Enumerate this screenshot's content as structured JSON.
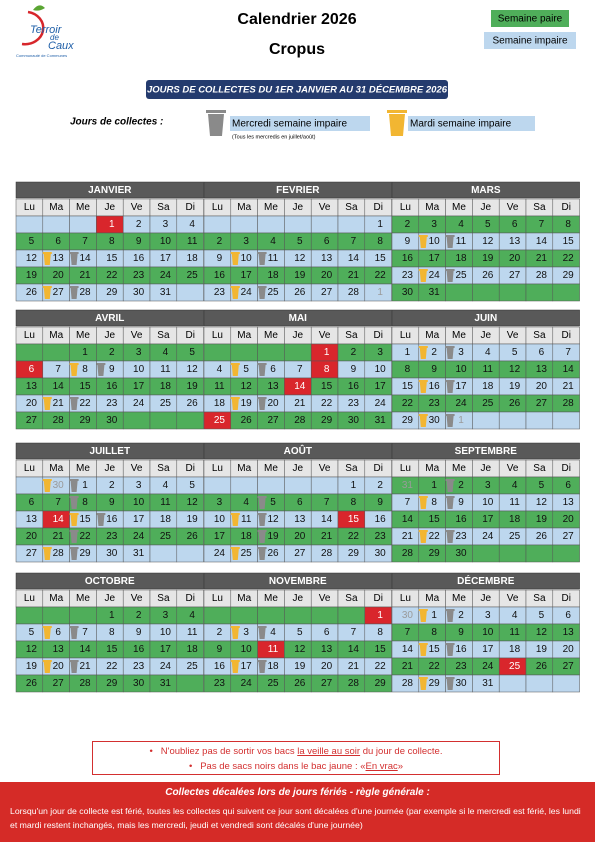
{
  "header": {
    "title": "Calendrier 2026",
    "subtitle": "Cropus",
    "logo": {
      "line1": "Terroir",
      "line2": "de",
      "line3": "Caux",
      "tagline": "Communauté de Communes"
    },
    "legend": {
      "even": "Semaine paire",
      "odd": "Semaine impaire"
    }
  },
  "banner": "JOURS DE COLLECTES DU 1ER JANVIER AU 31 DÉCEMBRE 2026",
  "collection_days": {
    "label": "Jours de collectes :",
    "gray": {
      "text": "Mercredi semaine impaire",
      "note": "(Tous les mercredis en juillet/août)"
    },
    "yellow": {
      "text": "Mardi semaine impaire"
    }
  },
  "weekdays": [
    "Lu",
    "Ma",
    "Me",
    "Je",
    "Ve",
    "Sa",
    "Di"
  ],
  "months": [
    {
      "name": "JANVIER",
      "holidays": [
        1
      ],
      "weeks": [
        {
          "parity": "odd",
          "days": [
            null,
            null,
            null,
            1,
            2,
            3,
            4
          ]
        },
        {
          "parity": "even",
          "days": [
            5,
            6,
            7,
            8,
            9,
            10,
            11
          ]
        },
        {
          "parity": "odd",
          "days": [
            12,
            13,
            14,
            15,
            16,
            17,
            18
          ],
          "yellow": [
            13
          ],
          "gray": [
            14
          ]
        },
        {
          "parity": "even",
          "days": [
            19,
            20,
            21,
            22,
            23,
            24,
            25
          ]
        },
        {
          "parity": "odd",
          "days": [
            26,
            27,
            28,
            29,
            30,
            31,
            null
          ],
          "yellow": [
            27
          ],
          "gray": [
            28
          ]
        }
      ]
    },
    {
      "name": "FEVRIER",
      "weeks": [
        {
          "parity": "odd",
          "days": [
            null,
            null,
            null,
            null,
            null,
            null,
            1
          ]
        },
        {
          "parity": "even",
          "days": [
            2,
            3,
            4,
            5,
            6,
            7,
            8
          ]
        },
        {
          "parity": "odd",
          "days": [
            9,
            10,
            11,
            12,
            13,
            14,
            15
          ],
          "yellow": [
            10
          ],
          "gray": [
            11
          ]
        },
        {
          "parity": "even",
          "days": [
            16,
            17,
            18,
            19,
            20,
            21,
            22
          ]
        },
        {
          "parity": "odd",
          "days": [
            23,
            24,
            25,
            26,
            27,
            28,
            1
          ],
          "faded": [
            1
          ],
          "yellow": [
            24
          ],
          "gray": [
            25
          ]
        }
      ]
    },
    {
      "name": "MARS",
      "weeks": [
        {
          "parity": "even",
          "days": [
            2,
            3,
            4,
            5,
            6,
            7,
            8
          ]
        },
        {
          "parity": "odd",
          "days": [
            9,
            10,
            11,
            12,
            13,
            14,
            15
          ],
          "yellow": [
            10
          ],
          "gray": [
            11
          ]
        },
        {
          "parity": "even",
          "days": [
            16,
            17,
            18,
            19,
            20,
            21,
            22
          ]
        },
        {
          "parity": "odd",
          "days": [
            23,
            24,
            25,
            26,
            27,
            28,
            29
          ],
          "yellow": [
            24
          ],
          "gray": [
            25
          ]
        },
        {
          "parity": "even",
          "days": [
            30,
            31,
            null,
            null,
            null,
            null,
            null
          ]
        }
      ]
    },
    {
      "name": "AVRIL",
      "holidays": [
        6
      ],
      "weeks": [
        {
          "parity": "even",
          "days": [
            null,
            null,
            1,
            2,
            3,
            4,
            5
          ]
        },
        {
          "parity": "odd",
          "days": [
            6,
            7,
            8,
            9,
            10,
            11,
            12
          ],
          "yellow": [
            8
          ],
          "gray": [
            9
          ]
        },
        {
          "parity": "even",
          "days": [
            13,
            14,
            15,
            16,
            17,
            18,
            19
          ]
        },
        {
          "parity": "odd",
          "days": [
            20,
            21,
            22,
            23,
            24,
            25,
            26
          ],
          "yellow": [
            21
          ],
          "gray": [
            22
          ]
        },
        {
          "parity": "even",
          "days": [
            27,
            28,
            29,
            30,
            null,
            null,
            null
          ]
        }
      ]
    },
    {
      "name": "MAI",
      "holidays": [
        1,
        8,
        14,
        25
      ],
      "weeks": [
        {
          "parity": "even",
          "days": [
            null,
            null,
            null,
            null,
            1,
            2,
            3
          ]
        },
        {
          "parity": "odd",
          "days": [
            4,
            5,
            6,
            7,
            8,
            9,
            10
          ],
          "yellow": [
            5
          ],
          "gray": [
            6
          ]
        },
        {
          "parity": "even",
          "days": [
            11,
            12,
            13,
            14,
            15,
            16,
            17
          ]
        },
        {
          "parity": "odd",
          "days": [
            18,
            19,
            20,
            21,
            22,
            23,
            24
          ],
          "yellow": [
            19
          ],
          "gray": [
            20
          ]
        },
        {
          "parity": "even",
          "days": [
            25,
            26,
            27,
            28,
            29,
            30,
            31
          ]
        }
      ]
    },
    {
      "name": "JUIN",
      "weeks": [
        {
          "parity": "odd",
          "days": [
            1,
            2,
            3,
            4,
            5,
            6,
            7
          ],
          "yellow": [
            2
          ],
          "gray": [
            3
          ]
        },
        {
          "parity": "even",
          "days": [
            8,
            9,
            10,
            11,
            12,
            13,
            14
          ]
        },
        {
          "parity": "odd",
          "days": [
            15,
            16,
            17,
            18,
            19,
            20,
            21
          ],
          "yellow": [
            16
          ],
          "gray": [
            17
          ]
        },
        {
          "parity": "even",
          "days": [
            22,
            23,
            24,
            25,
            26,
            27,
            28
          ]
        },
        {
          "parity": "odd",
          "days": [
            29,
            30,
            1,
            null,
            null,
            null,
            null
          ],
          "faded": [
            1
          ],
          "yellow": [
            30
          ],
          "gray": [
            1
          ]
        }
      ]
    },
    {
      "name": "JUILLET",
      "holidays": [
        14
      ],
      "weeks": [
        {
          "parity": "odd",
          "days": [
            null,
            30,
            1,
            2,
            3,
            4,
            5
          ],
          "faded": [
            30
          ],
          "yellow": [
            30
          ],
          "gray": [
            1
          ]
        },
        {
          "parity": "even",
          "days": [
            6,
            7,
            8,
            9,
            10,
            11,
            12
          ],
          "gray": [
            8
          ]
        },
        {
          "parity": "odd",
          "days": [
            13,
            14,
            15,
            16,
            17,
            18,
            19
          ],
          "yellow": [
            15
          ],
          "gray": [
            16
          ]
        },
        {
          "parity": "even",
          "days": [
            20,
            21,
            22,
            23,
            24,
            25,
            26
          ],
          "gray": [
            22
          ]
        },
        {
          "parity": "odd",
          "days": [
            27,
            28,
            29,
            30,
            31,
            null,
            null
          ],
          "yellow": [
            28
          ],
          "gray": [
            29
          ]
        }
      ]
    },
    {
      "name": "AOÛT",
      "holidays": [
        15
      ],
      "weeks": [
        {
          "parity": "odd",
          "days": [
            null,
            null,
            null,
            null,
            null,
            1,
            2
          ]
        },
        {
          "parity": "even",
          "days": [
            3,
            4,
            5,
            6,
            7,
            8,
            9
          ],
          "gray": [
            5
          ]
        },
        {
          "parity": "odd",
          "days": [
            10,
            11,
            12,
            13,
            14,
            15,
            16
          ],
          "yellow": [
            11
          ],
          "gray": [
            12
          ]
        },
        {
          "parity": "even",
          "days": [
            17,
            18,
            19,
            20,
            21,
            22,
            23
          ],
          "gray": [
            19
          ]
        },
        {
          "parity": "odd",
          "days": [
            24,
            25,
            26,
            27,
            28,
            29,
            30
          ],
          "yellow": [
            25
          ],
          "gray": [
            26
          ]
        }
      ]
    },
    {
      "name": "SEPTEMBRE",
      "weeks": [
        {
          "parity": "even",
          "days": [
            31,
            1,
            2,
            3,
            4,
            5,
            6
          ],
          "faded": [
            31
          ],
          "gray": [
            2
          ]
        },
        {
          "parity": "odd",
          "days": [
            7,
            8,
            9,
            10,
            11,
            12,
            13
          ],
          "yellow": [
            8
          ],
          "gray": [
            9
          ]
        },
        {
          "parity": "even",
          "days": [
            14,
            15,
            16,
            17,
            18,
            19,
            20
          ]
        },
        {
          "parity": "odd",
          "days": [
            21,
            22,
            23,
            24,
            25,
            26,
            27
          ],
          "yellow": [
            22
          ],
          "gray": [
            23
          ]
        },
        {
          "parity": "even",
          "days": [
            28,
            29,
            30,
            null,
            null,
            null,
            null
          ]
        }
      ]
    },
    {
      "name": "OCTOBRE",
      "weeks": [
        {
          "parity": "even",
          "days": [
            null,
            null,
            null,
            1,
            2,
            3,
            4
          ]
        },
        {
          "parity": "odd",
          "days": [
            5,
            6,
            7,
            8,
            9,
            10,
            11
          ],
          "yellow": [
            6
          ],
          "gray": [
            7
          ]
        },
        {
          "parity": "even",
          "days": [
            12,
            13,
            14,
            15,
            16,
            17,
            18
          ]
        },
        {
          "parity": "odd",
          "days": [
            19,
            20,
            21,
            22,
            23,
            24,
            25
          ],
          "yellow": [
            20
          ],
          "gray": [
            21
          ]
        },
        {
          "parity": "even",
          "days": [
            26,
            27,
            28,
            29,
            30,
            31,
            null
          ]
        }
      ]
    },
    {
      "name": "NOVEMBRE",
      "holidays": [
        1,
        11
      ],
      "weeks": [
        {
          "parity": "even",
          "days": [
            null,
            null,
            null,
            null,
            null,
            null,
            1
          ]
        },
        {
          "parity": "odd",
          "days": [
            2,
            3,
            4,
            5,
            6,
            7,
            8
          ],
          "yellow": [
            3
          ],
          "gray": [
            4
          ]
        },
        {
          "parity": "even",
          "days": [
            9,
            10,
            11,
            12,
            13,
            14,
            15
          ]
        },
        {
          "parity": "odd",
          "days": [
            16,
            17,
            18,
            19,
            20,
            21,
            22
          ],
          "yellow": [
            17
          ],
          "gray": [
            18
          ]
        },
        {
          "parity": "even",
          "days": [
            23,
            24,
            25,
            26,
            27,
            28,
            29
          ]
        }
      ]
    },
    {
      "name": "DÉCEMBRE",
      "holidays": [
        25
      ],
      "weeks": [
        {
          "parity": "odd",
          "days": [
            30,
            1,
            2,
            3,
            4,
            5,
            6
          ],
          "faded": [
            30
          ],
          "yellow": [
            1
          ],
          "gray": [
            2
          ]
        },
        {
          "parity": "even",
          "days": [
            7,
            8,
            9,
            10,
            11,
            12,
            13
          ]
        },
        {
          "parity": "odd",
          "days": [
            14,
            15,
            16,
            17,
            18,
            19,
            20
          ],
          "yellow": [
            15
          ],
          "gray": [
            16
          ]
        },
        {
          "parity": "even",
          "days": [
            21,
            22,
            23,
            24,
            25,
            26,
            27
          ]
        },
        {
          "parity": "odd",
          "days": [
            28,
            29,
            30,
            31,
            null,
            null,
            null
          ],
          "yellow": [
            29
          ],
          "gray": [
            30
          ]
        }
      ]
    }
  ],
  "notes": [
    {
      "bullet": "•",
      "before": "N'oubliez pas de sortir vos bacs ",
      "emphasis": "la veille au soir",
      "after": " du jour de collecte."
    },
    {
      "bullet": "•",
      "before": "Pas de sacs noirs dans le bac jaune : «",
      "emphasis": "En vrac",
      "after": "»"
    }
  ],
  "footer": {
    "title": "Collectes décalées lors de jours fériés - règle générale :",
    "body": "Lorsqu'un jour de collecte est férié, toutes les collectes qui suivent ce jour sont décalées d'une journée (par exemple si le mercredi est férié, les lundi et mardi restent inchangés, mais les mercredi, jeudi et vendredi sont décalés d'une journée)"
  }
}
